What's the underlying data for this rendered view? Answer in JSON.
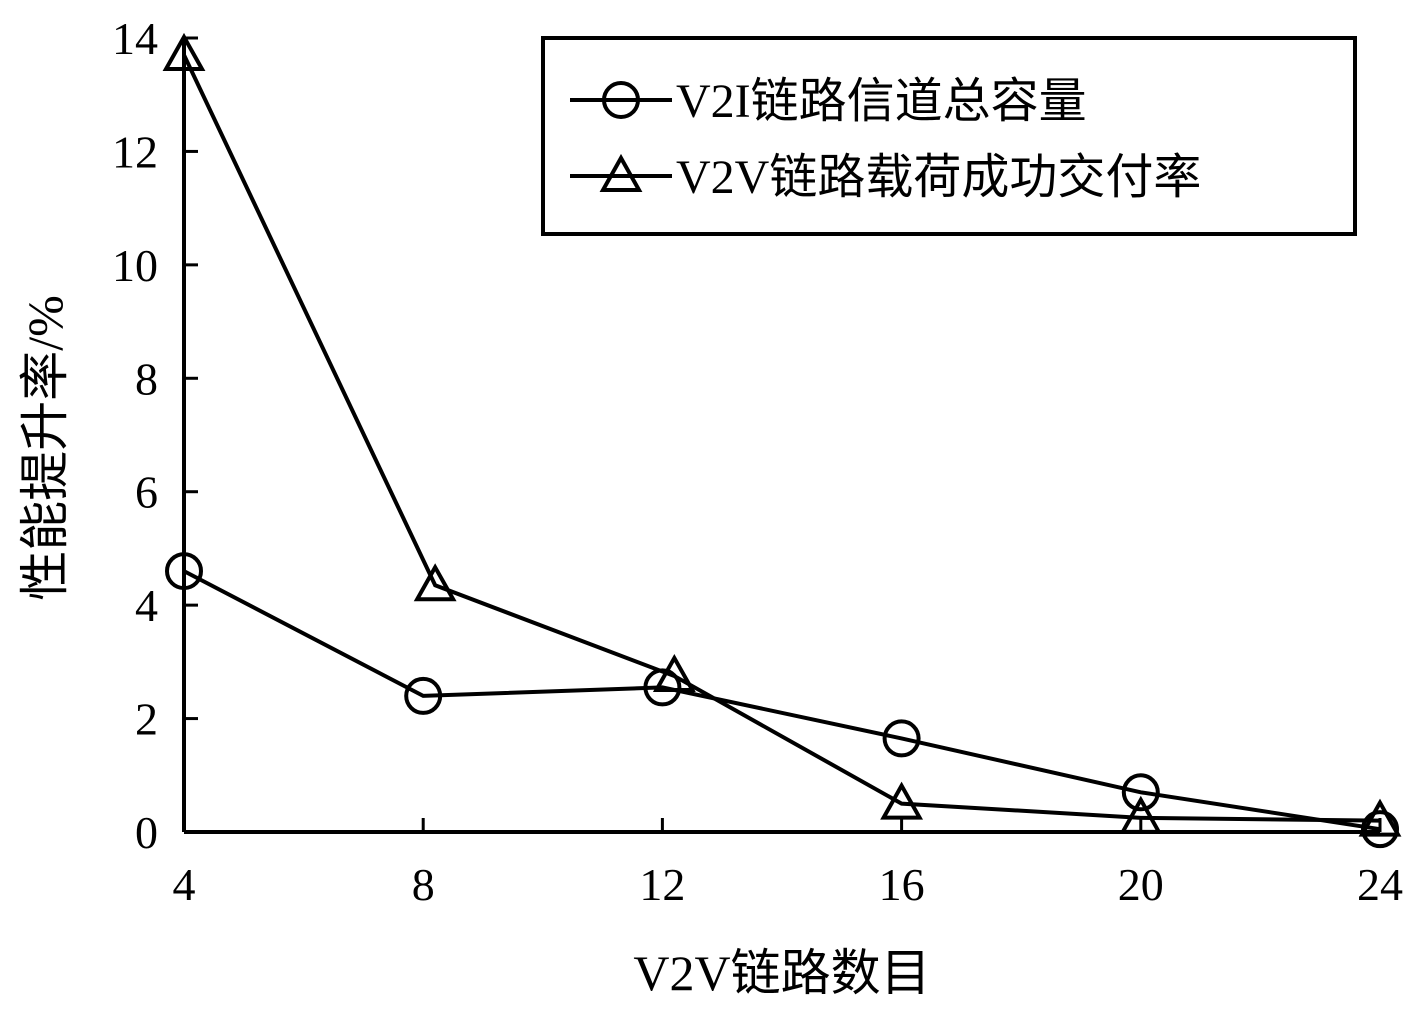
{
  "chart_data": {
    "type": "line",
    "title": "",
    "xlabel": "V2V链路数目",
    "ylabel": "性能提升率/%",
    "x": [
      4,
      8,
      12,
      16,
      20,
      24
    ],
    "xticks": [
      "4",
      "8",
      "12",
      "16",
      "20",
      "24"
    ],
    "xlim": [
      4,
      24
    ],
    "yticks": [
      "0",
      "2",
      "4",
      "6",
      "8",
      "10",
      "12",
      "14"
    ],
    "ylim": [
      0,
      14
    ],
    "grid": false,
    "legend_position": "top-right",
    "series": [
      {
        "name": "V2I链路信道总容量",
        "marker": "circle",
        "color": "#000000",
        "x": [
          4,
          8,
          12,
          16,
          20,
          24
        ],
        "values": [
          4.6,
          2.4,
          2.55,
          1.65,
          0.7,
          0.05
        ]
      },
      {
        "name": "V2V链路载荷成功交付率",
        "marker": "triangle",
        "color": "#000000",
        "x": [
          4,
          8.2,
          12.2,
          16,
          20,
          24
        ],
        "values": [
          13.7,
          4.35,
          2.75,
          0.5,
          0.25,
          0.2
        ]
      }
    ]
  }
}
